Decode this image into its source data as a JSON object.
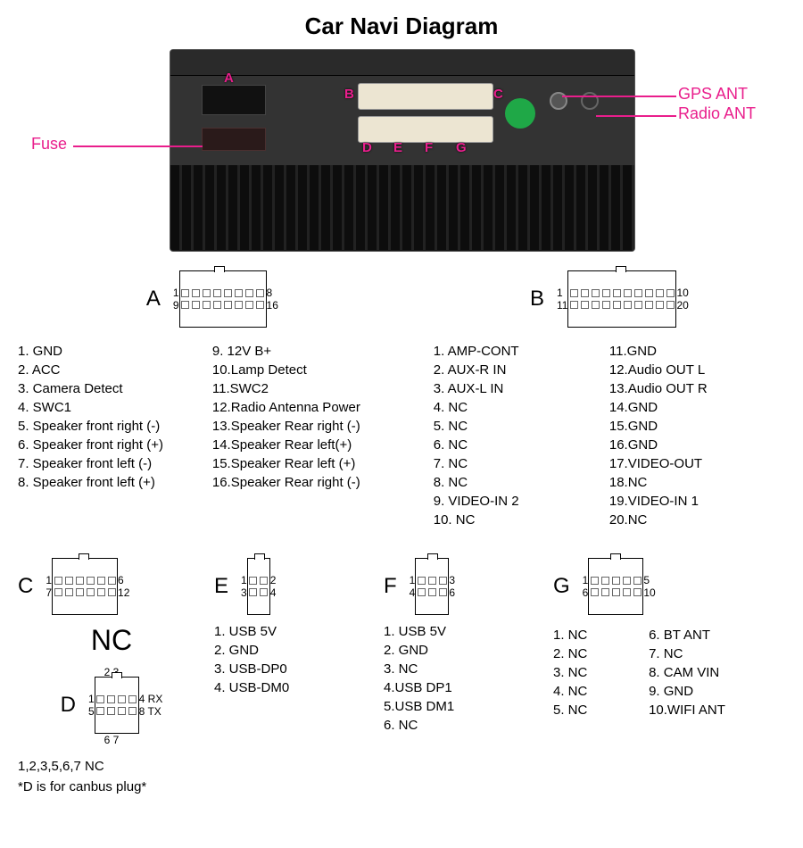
{
  "title": "Car Navi Diagram",
  "accent_color": "#e91e8c",
  "labels": {
    "fuse": "Fuse",
    "gps": "GPS ANT",
    "radio": "Radio ANT",
    "A": "A",
    "B": "B",
    "C": "C",
    "D": "D",
    "E": "E",
    "F": "F",
    "G": "G"
  },
  "connectors": {
    "A": {
      "letter": "A",
      "cols": 8,
      "rows": 2,
      "nums": {
        "tl": "1",
        "tr": "8",
        "bl": "9",
        "br": "16"
      },
      "pins_left": [
        "1. GND",
        "2. ACC",
        "3. Camera Detect",
        "4. SWC1",
        "5. Speaker front right (-)",
        "6. Speaker front right (+)",
        "7. Speaker front left (-)",
        "8. Speaker front left (+)"
      ],
      "pins_right": [
        "9.  12V B+",
        "10.Lamp Detect",
        "11.SWC2",
        "12.Radio Antenna Power",
        "13.Speaker Rear right (-)",
        "14.Speaker Rear left(+)",
        "15.Speaker Rear left (+)",
        "16.Speaker Rear right (-)"
      ]
    },
    "B": {
      "letter": "B",
      "cols": 10,
      "rows": 2,
      "nums": {
        "tl": "1",
        "tr": "10",
        "bl": "11",
        "br": "20"
      },
      "pins_left": [
        "1.  AMP-CONT",
        "2.  AUX-R IN",
        "3.  AUX-L IN",
        "4.  NC",
        "5.  NC",
        "6.  NC",
        "7.  NC",
        "8.  NC",
        "9.  VIDEO-IN 2",
        "10.  NC"
      ],
      "pins_right": [
        "11.GND",
        "12.Audio OUT  L",
        "13.Audio OUT  R",
        "14.GND",
        "15.GND",
        "16.GND",
        "17.VIDEO-OUT",
        "18.NC",
        "19.VIDEO-IN 1",
        "20.NC"
      ]
    },
    "C": {
      "letter": "C",
      "cols": 6,
      "rows": 2,
      "nums": {
        "tl": "1",
        "tr": "6",
        "bl": "7",
        "br": "12"
      },
      "note": "NC"
    },
    "D": {
      "letter": "D",
      "cols": 4,
      "rows": 2,
      "top_nums": "2 3",
      "left_nums": {
        "t": "1",
        "b": "5"
      },
      "right_labels": {
        "t": "4  RX",
        "b": "8  TX"
      },
      "bot_nums": "6 7",
      "note1": "1,2,3,5,6,7  NC",
      "note2": "*D is for canbus plug*"
    },
    "E": {
      "letter": "E",
      "cols": 2,
      "rows": 2,
      "nums": {
        "tl": "1",
        "tr": "2",
        "bl": "3",
        "br": "4"
      },
      "pins": [
        "1. USB 5V",
        "2. GND",
        "3. USB-DP0",
        "4. USB-DM0"
      ]
    },
    "F": {
      "letter": "F",
      "cols": 3,
      "rows": 2,
      "nums": {
        "tl": "1",
        "tr": "3",
        "bl": "4",
        "br": "6"
      },
      "pins": [
        "1. USB 5V",
        "2. GND",
        "3. NC",
        "4.USB DP1",
        "5.USB DM1",
        "6. NC"
      ]
    },
    "G": {
      "letter": "G",
      "cols": 5,
      "rows": 2,
      "nums": {
        "tl": "1",
        "tr": "5",
        "bl": "6",
        "br": "10"
      },
      "pins_left": [
        "1. NC",
        "2. NC",
        "3. NC",
        "4. NC",
        "5. NC"
      ],
      "pins_right": [
        "6.  BT ANT",
        "7.  NC",
        "8.  CAM VIN",
        "9.  GND",
        "10.WIFI ANT"
      ]
    }
  }
}
